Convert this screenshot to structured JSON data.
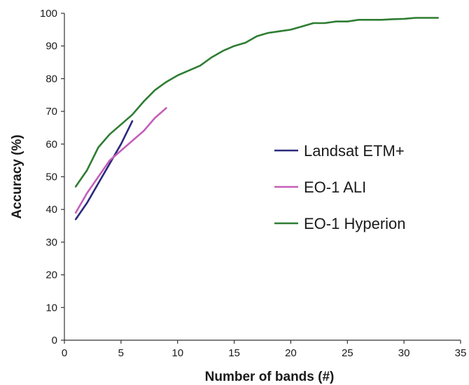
{
  "chart_data": {
    "type": "line",
    "xlabel": "Number of bands (#)",
    "ylabel": "Accuracy (%)",
    "xlim": [
      0,
      35
    ],
    "ylim": [
      0,
      100
    ],
    "xticks": [
      0,
      5,
      10,
      15,
      20,
      25,
      30,
      35
    ],
    "yticks": [
      0,
      10,
      20,
      30,
      40,
      50,
      60,
      70,
      80,
      90,
      100
    ],
    "grid": false,
    "legend_position": "right",
    "series": [
      {
        "name": "Landsat ETM+",
        "color": "#2b2a7e",
        "x": [
          1,
          2,
          3,
          4,
          5,
          6
        ],
        "y": [
          37,
          42,
          48,
          54,
          60,
          67
        ]
      },
      {
        "name": "EO-1 ALI",
        "color": "#c35fb8",
        "x": [
          1,
          2,
          3,
          4,
          5,
          6,
          7,
          8,
          9
        ],
        "y": [
          39,
          45,
          50,
          55,
          58,
          61,
          64,
          68,
          71
        ]
      },
      {
        "name": "EO-1 Hyperion",
        "color": "#2e7d32",
        "x": [
          1,
          2,
          3,
          4,
          5,
          6,
          7,
          8,
          9,
          10,
          11,
          12,
          13,
          14,
          15,
          16,
          17,
          18,
          19,
          20,
          21,
          22,
          23,
          24,
          25,
          26,
          27,
          28,
          29,
          30,
          31,
          32,
          33
        ],
        "y": [
          47,
          52,
          59,
          63,
          66,
          69,
          73,
          76.5,
          79,
          81,
          82.5,
          84,
          86.5,
          88.5,
          90,
          91,
          93,
          94,
          94.5,
          95,
          96,
          97,
          97,
          97.5,
          97.5,
          98,
          98,
          98,
          98.2,
          98.3,
          98.6,
          98.6,
          98.6
        ]
      }
    ]
  }
}
